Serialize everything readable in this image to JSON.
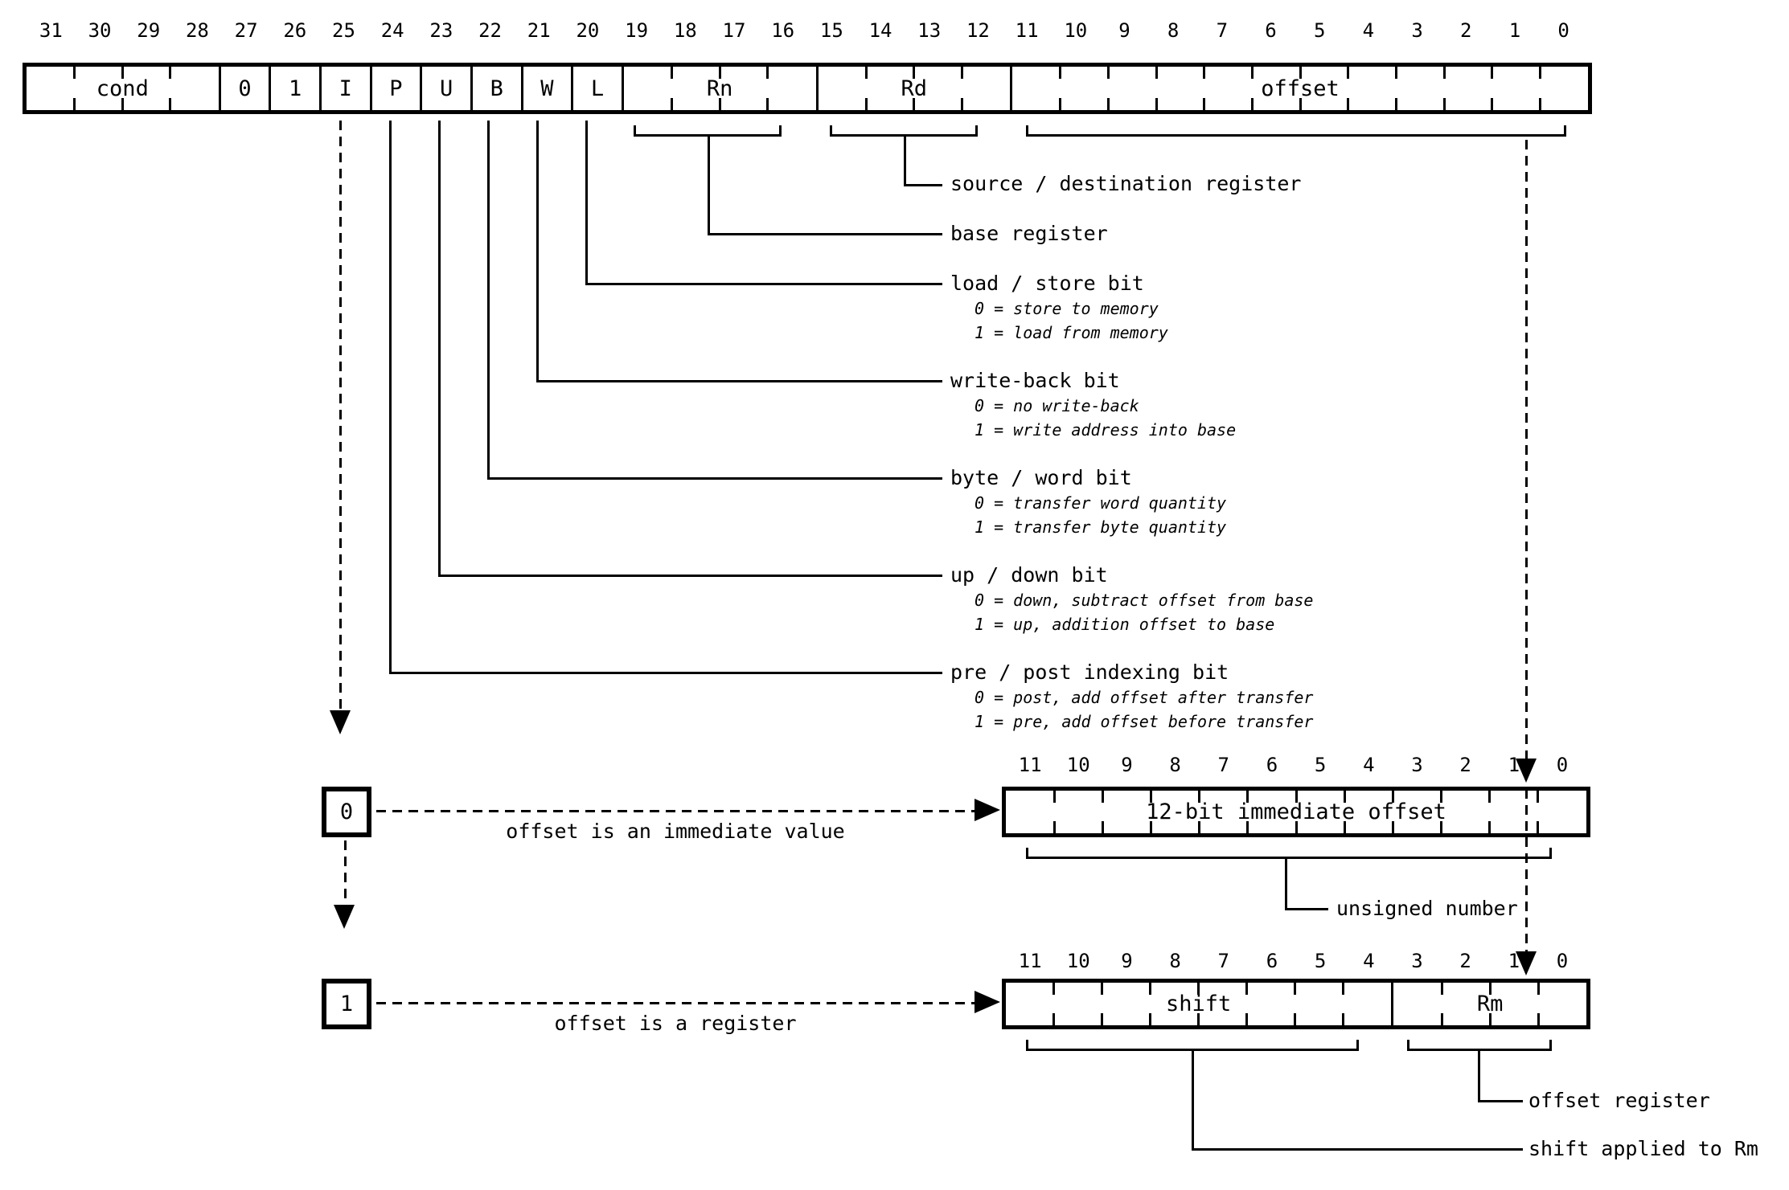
{
  "main_register": {
    "bit_numbers": [
      "31",
      "30",
      "29",
      "28",
      "27",
      "26",
      "25",
      "24",
      "23",
      "22",
      "21",
      "20",
      "19",
      "18",
      "17",
      "16",
      "15",
      "14",
      "13",
      "12",
      "11",
      "10",
      "9",
      "8",
      "7",
      "6",
      "5",
      "4",
      "3",
      "2",
      "1",
      "0"
    ],
    "fields": [
      {
        "label": "cond",
        "bits": 4
      },
      {
        "label": "0",
        "bits": 1
      },
      {
        "label": "1",
        "bits": 1
      },
      {
        "label": "I",
        "bits": 1
      },
      {
        "label": "P",
        "bits": 1
      },
      {
        "label": "U",
        "bits": 1
      },
      {
        "label": "B",
        "bits": 1
      },
      {
        "label": "W",
        "bits": 1
      },
      {
        "label": "L",
        "bits": 1
      },
      {
        "label": "Rn",
        "bits": 4
      },
      {
        "label": "Rd",
        "bits": 4
      },
      {
        "label": "offset",
        "bits": 12
      }
    ]
  },
  "annotations": [
    {
      "title": "source / destination register",
      "subs": []
    },
    {
      "title": "base register",
      "subs": []
    },
    {
      "title": "load / store bit",
      "subs": [
        "0 = store to memory",
        "1 = load from memory"
      ]
    },
    {
      "title": "write-back bit",
      "subs": [
        "0 = no write-back",
        "1 = write address into base"
      ]
    },
    {
      "title": "byte / word bit",
      "subs": [
        "0 = transfer word quantity",
        "1 = transfer byte quantity"
      ]
    },
    {
      "title": "up / down bit",
      "subs": [
        "0 = down, subtract offset from base",
        "1 = up, addition offset to base"
      ]
    },
    {
      "title": "pre / post indexing bit",
      "subs": [
        "0 = post, add offset after transfer",
        "1 = pre, add offset before transfer"
      ]
    }
  ],
  "immediate_branch": {
    "selector": "0",
    "caption": "offset is an immediate value",
    "bit_numbers": [
      "11",
      "10",
      "9",
      "8",
      "7",
      "6",
      "5",
      "4",
      "3",
      "2",
      "1",
      "0"
    ],
    "fields": [
      {
        "label": "12-bit immediate offset",
        "bits": 12
      }
    ],
    "annotation": "unsigned number"
  },
  "register_branch": {
    "selector": "1",
    "caption": "offset is a register",
    "bit_numbers": [
      "11",
      "10",
      "9",
      "8",
      "7",
      "6",
      "5",
      "4",
      "3",
      "2",
      "1",
      "0"
    ],
    "fields": [
      {
        "label": "shift",
        "bits": 8
      },
      {
        "label": "Rm",
        "bits": 4
      }
    ],
    "annotations": [
      "offset register",
      "shift applied to Rm"
    ]
  },
  "colors": {
    "ink": "#000000",
    "background": "#ffffff"
  }
}
